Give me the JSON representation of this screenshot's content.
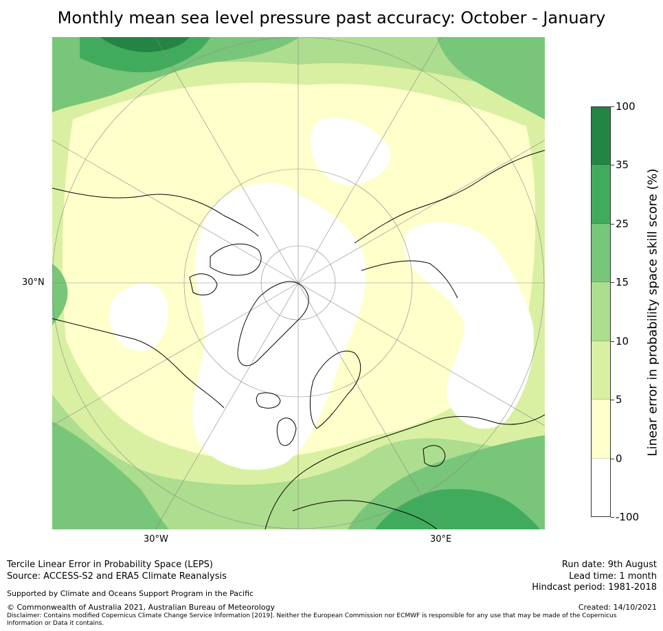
{
  "title": "Monthly mean sea level pressure past accuracy: October - January",
  "map": {
    "projection": "north polar stereographic",
    "lat_labels": [
      "30°N"
    ],
    "lon_labels": [
      "30°W",
      "30°E"
    ]
  },
  "colorbar": {
    "label": "Linear error in probability space skill score (%)",
    "ticks": [
      "100",
      "35",
      "25",
      "15",
      "10",
      "5",
      "0",
      "-100"
    ],
    "bins": [
      {
        "range": "-100 to 0",
        "color": "#ffffff"
      },
      {
        "range": "0 to 5",
        "color": "#ffffcc"
      },
      {
        "range": "5 to 10",
        "color": "#d9f0a3"
      },
      {
        "range": "10 to 15",
        "color": "#addd8e"
      },
      {
        "range": "15 to 25",
        "color": "#78c679"
      },
      {
        "range": "25 to 35",
        "color": "#41ab5d"
      },
      {
        "range": "35 to 100",
        "color": "#238443"
      }
    ]
  },
  "footer": {
    "line1": "Tercile Linear Error in Probability Space (LEPS)",
    "line2": "Source: ACCESS-S2 and ERA5 Climate Reanalysis",
    "support": "Supported by Climate and Oceans Support Program in the Pacific",
    "copyright": "© Commonwealth of Australia 2021, Australian Bureau of Meteorology",
    "disclaimer_1": "Disclaimer: Contains modified Copernicus Climate Change Service Information [2019]. Neither the European Commission nor ECMWF is responsible for any use that may be made of the Copernicus",
    "disclaimer_2": "Information or Data it contains.",
    "run_date": "Run date: 9th August",
    "lead_time": "Lead time: 1 month",
    "hindcast": "Hindcast period: 1981-2018",
    "created": "Created: 14/10/2021"
  }
}
